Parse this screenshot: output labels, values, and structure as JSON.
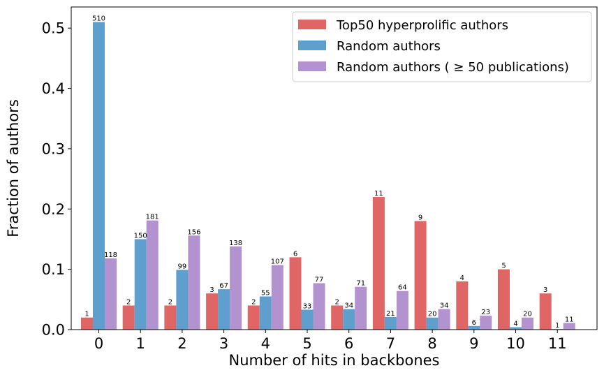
{
  "chart_data": {
    "type": "bar",
    "xlabel": "Number of hits in backbones",
    "ylabel": "Fraction of authors",
    "categories": [
      "0",
      "1",
      "2",
      "3",
      "4",
      "5",
      "6",
      "7",
      "8",
      "9",
      "10",
      "11"
    ],
    "ylim": [
      0,
      0.535
    ],
    "yticks": [
      "0.0",
      "0.1",
      "0.2",
      "0.3",
      "0.4",
      "0.5"
    ],
    "legend_position": "top-right",
    "series": [
      {
        "name": "Top50 hyperprolific authors",
        "color": "#e06666",
        "values": [
          0.02,
          0.04,
          0.04,
          0.06,
          0.04,
          0.12,
          0.04,
          0.22,
          0.18,
          0.08,
          0.1,
          0.06
        ],
        "labels": [
          "1",
          "2",
          "2",
          "3",
          "2",
          "6",
          "2",
          "11",
          "9",
          "4",
          "5",
          "3"
        ]
      },
      {
        "name": "Random authors",
        "color": "#5f9fcd",
        "values": [
          0.51,
          0.15,
          0.099,
          0.067,
          0.055,
          0.033,
          0.034,
          0.021,
          0.02,
          0.006,
          0.004,
          0.001
        ],
        "labels": [
          "510",
          "150",
          "99",
          "67",
          "55",
          "33",
          "34",
          "21",
          "20",
          "6",
          "4",
          "1"
        ]
      },
      {
        "name": "Random authors ( ≥ 50 publications)",
        "color": "#b392d0",
        "values": [
          0.118,
          0.181,
          0.156,
          0.138,
          0.107,
          0.077,
          0.071,
          0.064,
          0.034,
          0.023,
          0.02,
          0.011
        ],
        "labels": [
          "118",
          "181",
          "156",
          "138",
          "107",
          "77",
          "71",
          "64",
          "34",
          "23",
          "20",
          "11"
        ]
      }
    ]
  }
}
